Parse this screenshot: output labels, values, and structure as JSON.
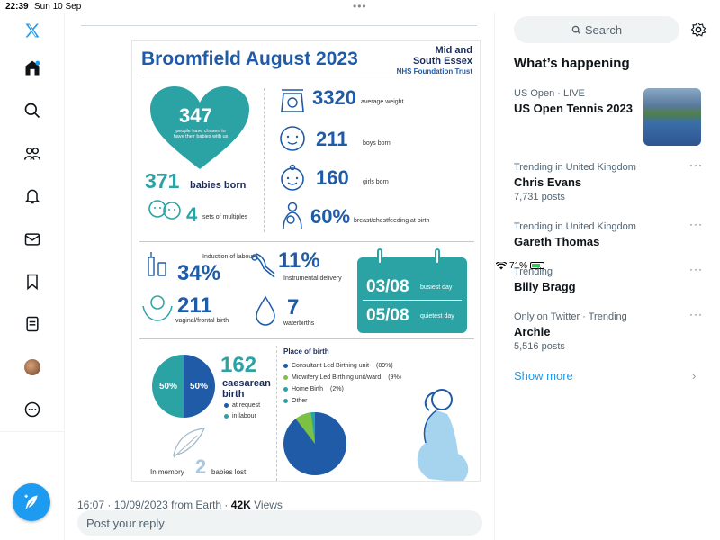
{
  "status": {
    "time": "22:39",
    "date": "Sun 10 Sep",
    "battery": "71%",
    "dots": "•••"
  },
  "nav": {
    "icons": [
      "x-logo-icon",
      "home-icon",
      "search-icon",
      "communities-icon",
      "notifications-icon",
      "messages-icon",
      "bookmarks-icon",
      "lists-icon",
      "profile-avatar",
      "more-icon"
    ],
    "accent": "#1d9bf0"
  },
  "poster": {
    "title": "Broomfield August 2023",
    "org_line1": "Mid and",
    "org_line2": "South Essex",
    "org_trust": "NHS Foundation Trust",
    "heart_num": "347",
    "heart_text": "people have chosen to have their babies with us",
    "babies_born_num": "371",
    "babies_born_label": "babies born",
    "multiples_num": "4",
    "multiples_label": "sets of multiples",
    "avg_weight_num": "3320",
    "avg_weight_label": "average weight",
    "boys_num": "211",
    "boys_label": "boys born",
    "girls_num": "160",
    "girls_label": "girls born",
    "breast_num": "60%",
    "breast_label": "breast/chestfeeding at birth",
    "induction_label": "Induction of labour",
    "induction_num": "34%",
    "instrumental_num": "11%",
    "instrumental_label": "Instrumental delivery",
    "vaginal_num": "211",
    "vaginal_label": "vaginal/frontal birth",
    "water_num": "7",
    "water_label": "waterbirths",
    "busiest_date": "03/08",
    "busiest_label": "busiest day",
    "quietest_date": "05/08",
    "quietest_label": "quietest day",
    "caesarean_num": "162",
    "caesarean_label1": "caesarean",
    "caesarean_label2": "birth",
    "at_request": "at request",
    "in_labour": "in labour",
    "pie1_left": "50%",
    "pie1_right": "50%",
    "memory_text": "In memory",
    "memory_num": "2",
    "memory_label": "babies lost",
    "place_title": "Place of birth",
    "place_items": [
      {
        "label": "Consultant Led Birthing unit",
        "value": "(89%)",
        "color": "#1f5ba6"
      },
      {
        "label": "Midwifery Led Birthing unit/ward",
        "value": "(9%)",
        "color": "#7cc242"
      },
      {
        "label": "Home Birth",
        "value": "(2%)",
        "color": "#2ba3a5"
      },
      {
        "label": "Other",
        "value": "",
        "color": "#2ba3a5"
      }
    ]
  },
  "tweet": {
    "timestamp_prefix": "16:07 · 10/09/2023 from Earth · ",
    "views_num": "42K",
    "views_label": " Views"
  },
  "reply": {
    "placeholder": "Post your reply"
  },
  "right": {
    "search_label": "Search",
    "whats_happening": "What’s happening",
    "trends": [
      {
        "meta": "US Open · LIVE",
        "topic": "US Open Tennis 2023",
        "posts": ""
      },
      {
        "meta": "Trending in United Kingdom",
        "topic": "Chris Evans",
        "posts": "7,731 posts"
      },
      {
        "meta": "Trending in United Kingdom",
        "topic": "Gareth Thomas",
        "posts": ""
      },
      {
        "meta": "Trending",
        "topic": "Billy Bragg",
        "posts": ""
      },
      {
        "meta": "Only on Twitter · Trending",
        "topic": "Archie",
        "posts": "5,516 posts"
      }
    ],
    "show_more": "Show more",
    "more_dots": "···"
  }
}
